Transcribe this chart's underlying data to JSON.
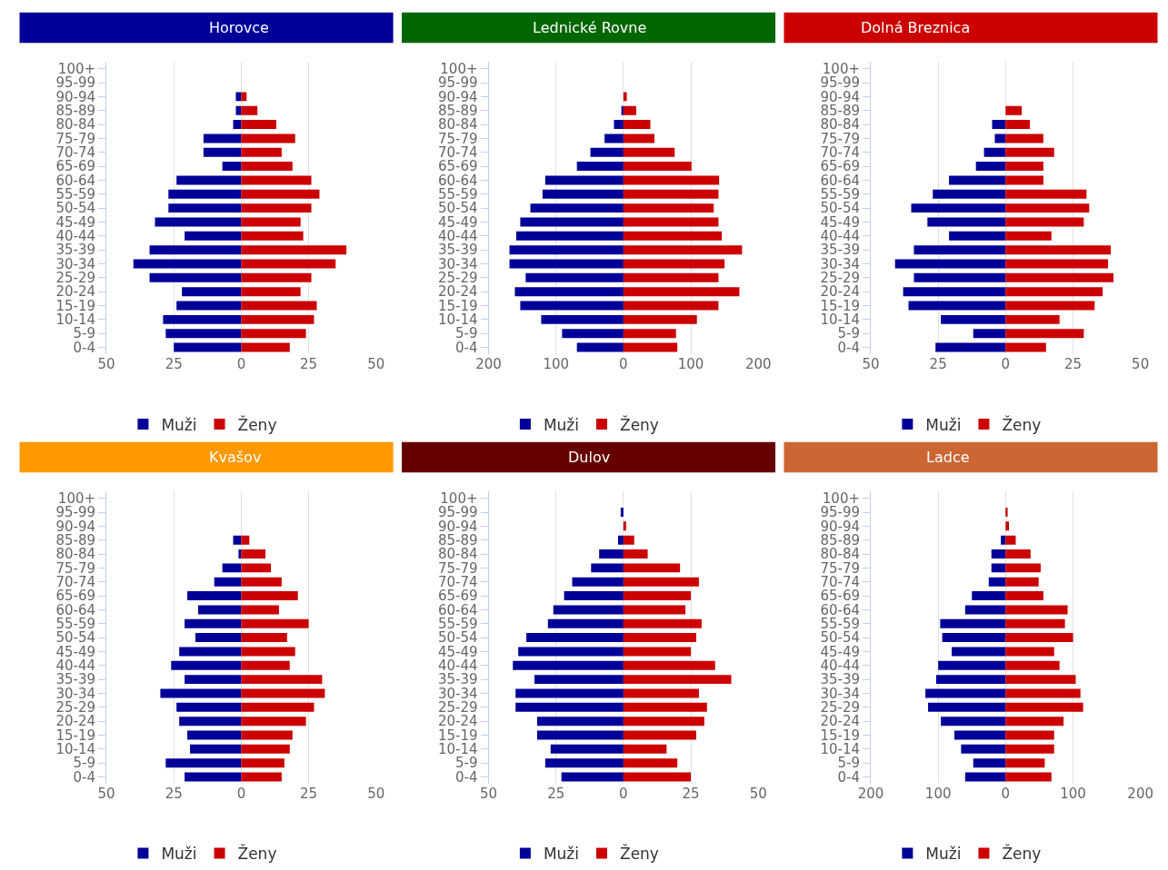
{
  "chart_data": [
    {
      "type": "bar",
      "orientation": "horizontal",
      "stacked": true,
      "title": "Horovce",
      "categories": [
        "100+",
        "95-99",
        "90-94",
        "85-89",
        "80-84",
        "75-79",
        "70-74",
        "65-69",
        "60-64",
        "55-59",
        "50-54",
        "45-49",
        "40-44",
        "35-39",
        "30-34",
        "25-29",
        "20-24",
        "15-19",
        "10-14",
        "5-9",
        "0-4"
      ],
      "series": [
        {
          "name": "Muži",
          "color": "#000099",
          "values": [
            null,
            null,
            -2,
            -2,
            -3,
            -14,
            -14,
            -7,
            -24,
            -27,
            -27,
            -32,
            -21,
            -34,
            -40,
            -34,
            -22,
            -24,
            -29,
            -28,
            -25
          ]
        },
        {
          "name": "Ženy",
          "color": "#cc0000",
          "values": [
            null,
            null,
            2,
            6,
            13,
            20,
            15,
            19,
            26,
            29,
            26,
            22,
            23,
            39,
            35,
            26,
            22,
            28,
            27,
            24,
            18
          ]
        }
      ],
      "xlim": [
        -50,
        50
      ],
      "xticks": [
        {
          "value": -50,
          "label": "50"
        },
        {
          "value": -25,
          "label": "25"
        },
        0,
        25,
        50
      ],
      "grid": "x",
      "legend": "bottom"
    },
    {
      "type": "bar",
      "orientation": "horizontal",
      "stacked": true,
      "title": "Lednické Rovne",
      "categories": [
        "100+",
        "95-99",
        "90-94",
        "85-89",
        "80-84",
        "75-79",
        "70-74",
        "65-69",
        "60-64",
        "55-59",
        "50-54",
        "45-49",
        "40-44",
        "35-39",
        "30-34",
        "25-29",
        "20-24",
        "15-19",
        "10-14",
        "5-9",
        "0-4"
      ],
      "series": [
        {
          "name": "Muži",
          "color": "#000099",
          "values": [
            null,
            null,
            null,
            -3,
            -14,
            -28,
            -49,
            -69,
            -116,
            -120,
            -138,
            -153,
            -159,
            -169,
            -169,
            -145,
            -161,
            -153,
            -122,
            -91,
            -69
          ]
        },
        {
          "name": "Ženy",
          "color": "#cc0000",
          "values": [
            null,
            null,
            5,
            19,
            40,
            46,
            76,
            101,
            142,
            141,
            134,
            141,
            146,
            176,
            150,
            141,
            172,
            141,
            109,
            78,
            80
          ]
        }
      ],
      "xlim": [
        -200,
        200
      ],
      "xticks": [
        {
          "value": -200,
          "label": "200"
        },
        {
          "value": -100,
          "label": "100"
        },
        0,
        100,
        200
      ],
      "grid": "x",
      "legend": "bottom"
    },
    {
      "type": "bar",
      "orientation": "horizontal",
      "stacked": true,
      "title": "Dolná Breznica",
      "categories": [
        "100+",
        "95-99",
        "90-94",
        "85-89",
        "80-84",
        "75-79",
        "70-74",
        "65-69",
        "60-64",
        "55-59",
        "50-54",
        "45-49",
        "40-44",
        "35-39",
        "30-34",
        "25-29",
        "20-24",
        "15-19",
        "10-14",
        "5-9",
        "0-4"
      ],
      "series": [
        {
          "name": "Muži",
          "color": "#000099",
          "values": [
            null,
            null,
            null,
            null,
            -5,
            -4,
            -8,
            -11,
            -21,
            -27,
            -35,
            -29,
            -21,
            -34,
            -41,
            -34,
            -38,
            -36,
            -24,
            -12,
            -26
          ]
        },
        {
          "name": "Ženy",
          "color": "#cc0000",
          "values": [
            null,
            null,
            null,
            6,
            9,
            14,
            18,
            14,
            14,
            30,
            31,
            29,
            17,
            39,
            38,
            40,
            36,
            33,
            20,
            29,
            15
          ]
        }
      ],
      "xlim": [
        -50,
        50
      ],
      "xticks": [
        {
          "value": -50,
          "label": "50"
        },
        {
          "value": -25,
          "label": "25"
        },
        0,
        25,
        50
      ],
      "grid": "x",
      "legend": "bottom"
    },
    {
      "type": "bar",
      "orientation": "horizontal",
      "stacked": true,
      "title": "Kvašov",
      "categories": [
        "100+",
        "95-99",
        "90-94",
        "85-89",
        "80-84",
        "75-79",
        "70-74",
        "65-69",
        "60-64",
        "55-59",
        "50-54",
        "45-49",
        "40-44",
        "35-39",
        "30-34",
        "25-29",
        "20-24",
        "15-19",
        "10-14",
        "5-9",
        "0-4"
      ],
      "series": [
        {
          "name": "Muži",
          "color": "#000099",
          "values": [
            null,
            null,
            null,
            -3,
            -1,
            -7,
            -10,
            -20,
            -16,
            -21,
            -17,
            -23,
            -26,
            -21,
            -30,
            -24,
            -23,
            -20,
            -19,
            -28,
            -21
          ]
        },
        {
          "name": "Ženy",
          "color": "#cc0000",
          "values": [
            null,
            null,
            null,
            3,
            9,
            11,
            15,
            21,
            14,
            25,
            17,
            20,
            18,
            30,
            31,
            27,
            24,
            19,
            18,
            16,
            15
          ]
        }
      ],
      "xlim": [
        -50,
        50
      ],
      "xticks": [
        {
          "value": -50,
          "label": "50"
        },
        {
          "value": -25,
          "label": "25"
        },
        0,
        25,
        50
      ],
      "grid": "x",
      "legend": "bottom"
    },
    {
      "type": "bar",
      "orientation": "horizontal",
      "stacked": true,
      "title": "Dulov",
      "categories": [
        "100+",
        "95-99",
        "90-94",
        "85-89",
        "80-84",
        "75-79",
        "70-74",
        "65-69",
        "60-64",
        "55-59",
        "50-54",
        "45-49",
        "40-44",
        "35-39",
        "30-34",
        "25-29",
        "20-24",
        "15-19",
        "10-14",
        "5-9",
        "0-4"
      ],
      "series": [
        {
          "name": "Muži",
          "color": "#000099",
          "values": [
            null,
            -1,
            null,
            -2,
            -9,
            -12,
            -19,
            -22,
            -26,
            -28,
            -36,
            -39,
            -41,
            -33,
            -40,
            -40,
            -32,
            -32,
            -27,
            -29,
            -23
          ]
        },
        {
          "name": "Ženy",
          "color": "#cc0000",
          "values": [
            null,
            null,
            1,
            4,
            9,
            21,
            28,
            25,
            23,
            29,
            27,
            25,
            34,
            40,
            28,
            31,
            30,
            27,
            16,
            20,
            25
          ]
        }
      ],
      "xlim": [
        -50,
        50
      ],
      "xticks": [
        {
          "value": -50,
          "label": "50"
        },
        {
          "value": -25,
          "label": "25"
        },
        0,
        25,
        50
      ],
      "grid": "x",
      "legend": "bottom"
    },
    {
      "type": "bar",
      "orientation": "horizontal",
      "stacked": true,
      "title": "Ladce",
      "categories": [
        "100+",
        "95-99",
        "90-94",
        "85-89",
        "80-84",
        "75-79",
        "70-74",
        "65-69",
        "60-64",
        "55-59",
        "50-54",
        "45-49",
        "40-44",
        "35-39",
        "30-34",
        "25-29",
        "20-24",
        "15-19",
        "10-14",
        "5-9",
        "0-4"
      ],
      "series": [
        {
          "name": "Muži",
          "color": "#000099",
          "values": [
            null,
            null,
            null,
            -7,
            -21,
            -21,
            -25,
            -50,
            -60,
            -97,
            -94,
            -80,
            -100,
            -103,
            -119,
            -115,
            -96,
            -76,
            -66,
            -48,
            -60
          ]
        },
        {
          "name": "Ženy",
          "color": "#cc0000",
          "values": [
            null,
            3,
            5,
            15,
            37,
            52,
            49,
            56,
            92,
            88,
            100,
            72,
            80,
            104,
            111,
            115,
            86,
            72,
            72,
            58,
            68
          ]
        }
      ],
      "xlim": [
        -200,
        200
      ],
      "xticks": [
        {
          "value": -200,
          "label": "200"
        },
        {
          "value": -100,
          "label": "100"
        },
        0,
        100,
        200
      ],
      "grid": "x",
      "legend": "bottom"
    }
  ]
}
